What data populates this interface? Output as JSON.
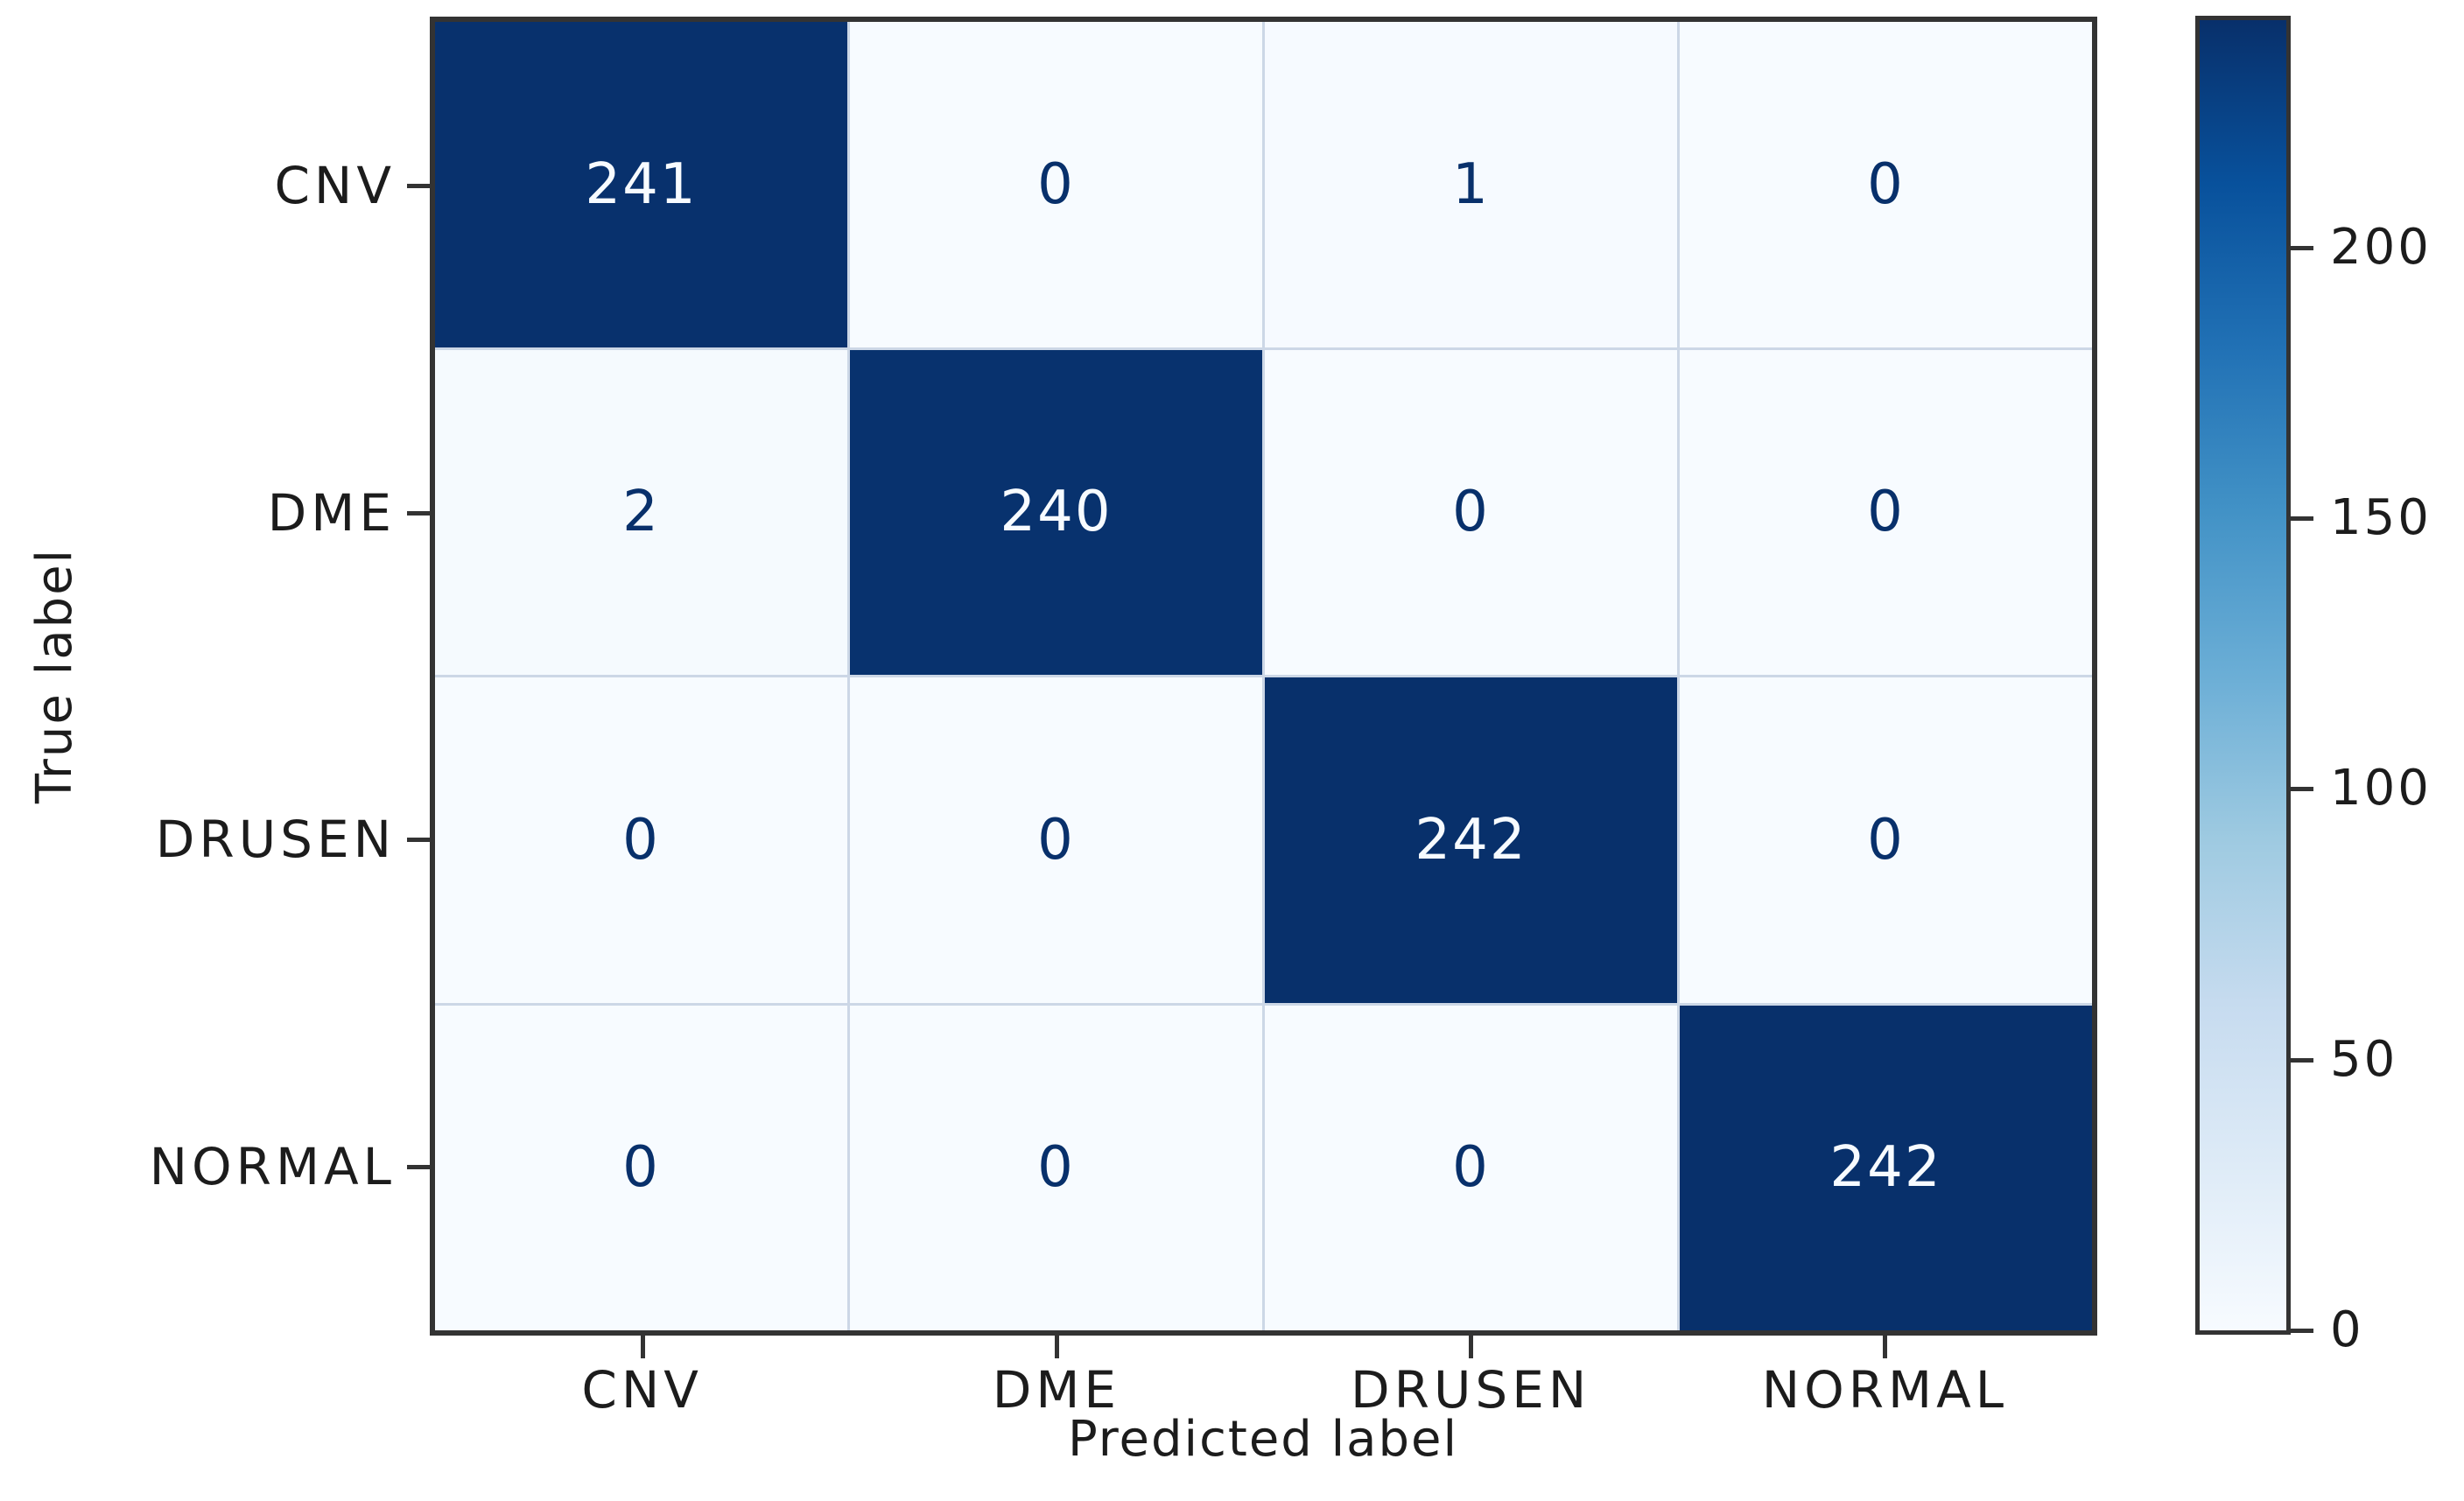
{
  "chart_data": {
    "type": "heatmap",
    "title": "",
    "xlabel": "Predicted label",
    "ylabel": "True label",
    "categories": [
      "CNV",
      "DME",
      "DRUSEN",
      "NORMAL"
    ],
    "matrix": [
      [
        241,
        0,
        1,
        0
      ],
      [
        2,
        240,
        0,
        0
      ],
      [
        0,
        0,
        242,
        0
      ],
      [
        0,
        0,
        0,
        242
      ]
    ],
    "colorbar": {
      "ticks": [
        0,
        50,
        100,
        150,
        200
      ],
      "vmin": 0,
      "vmax": 242,
      "colormap": "Blues",
      "gradient_stops": [
        "#f7fbff",
        "#deebf7",
        "#c6dbef",
        "#9ecae1",
        "#6baed6",
        "#4292c6",
        "#2171b5",
        "#08519c",
        "#08306b"
      ]
    },
    "legend_position": "right-colorbar",
    "grid": false
  },
  "colors": {
    "background": "#ffffff",
    "spine": "#333333",
    "tick_text": "#1c1c1c",
    "cell_text_on_dark": "#f7fbff",
    "cell_text_on_light": "#08306b",
    "gridline": "#ccd7e6"
  }
}
